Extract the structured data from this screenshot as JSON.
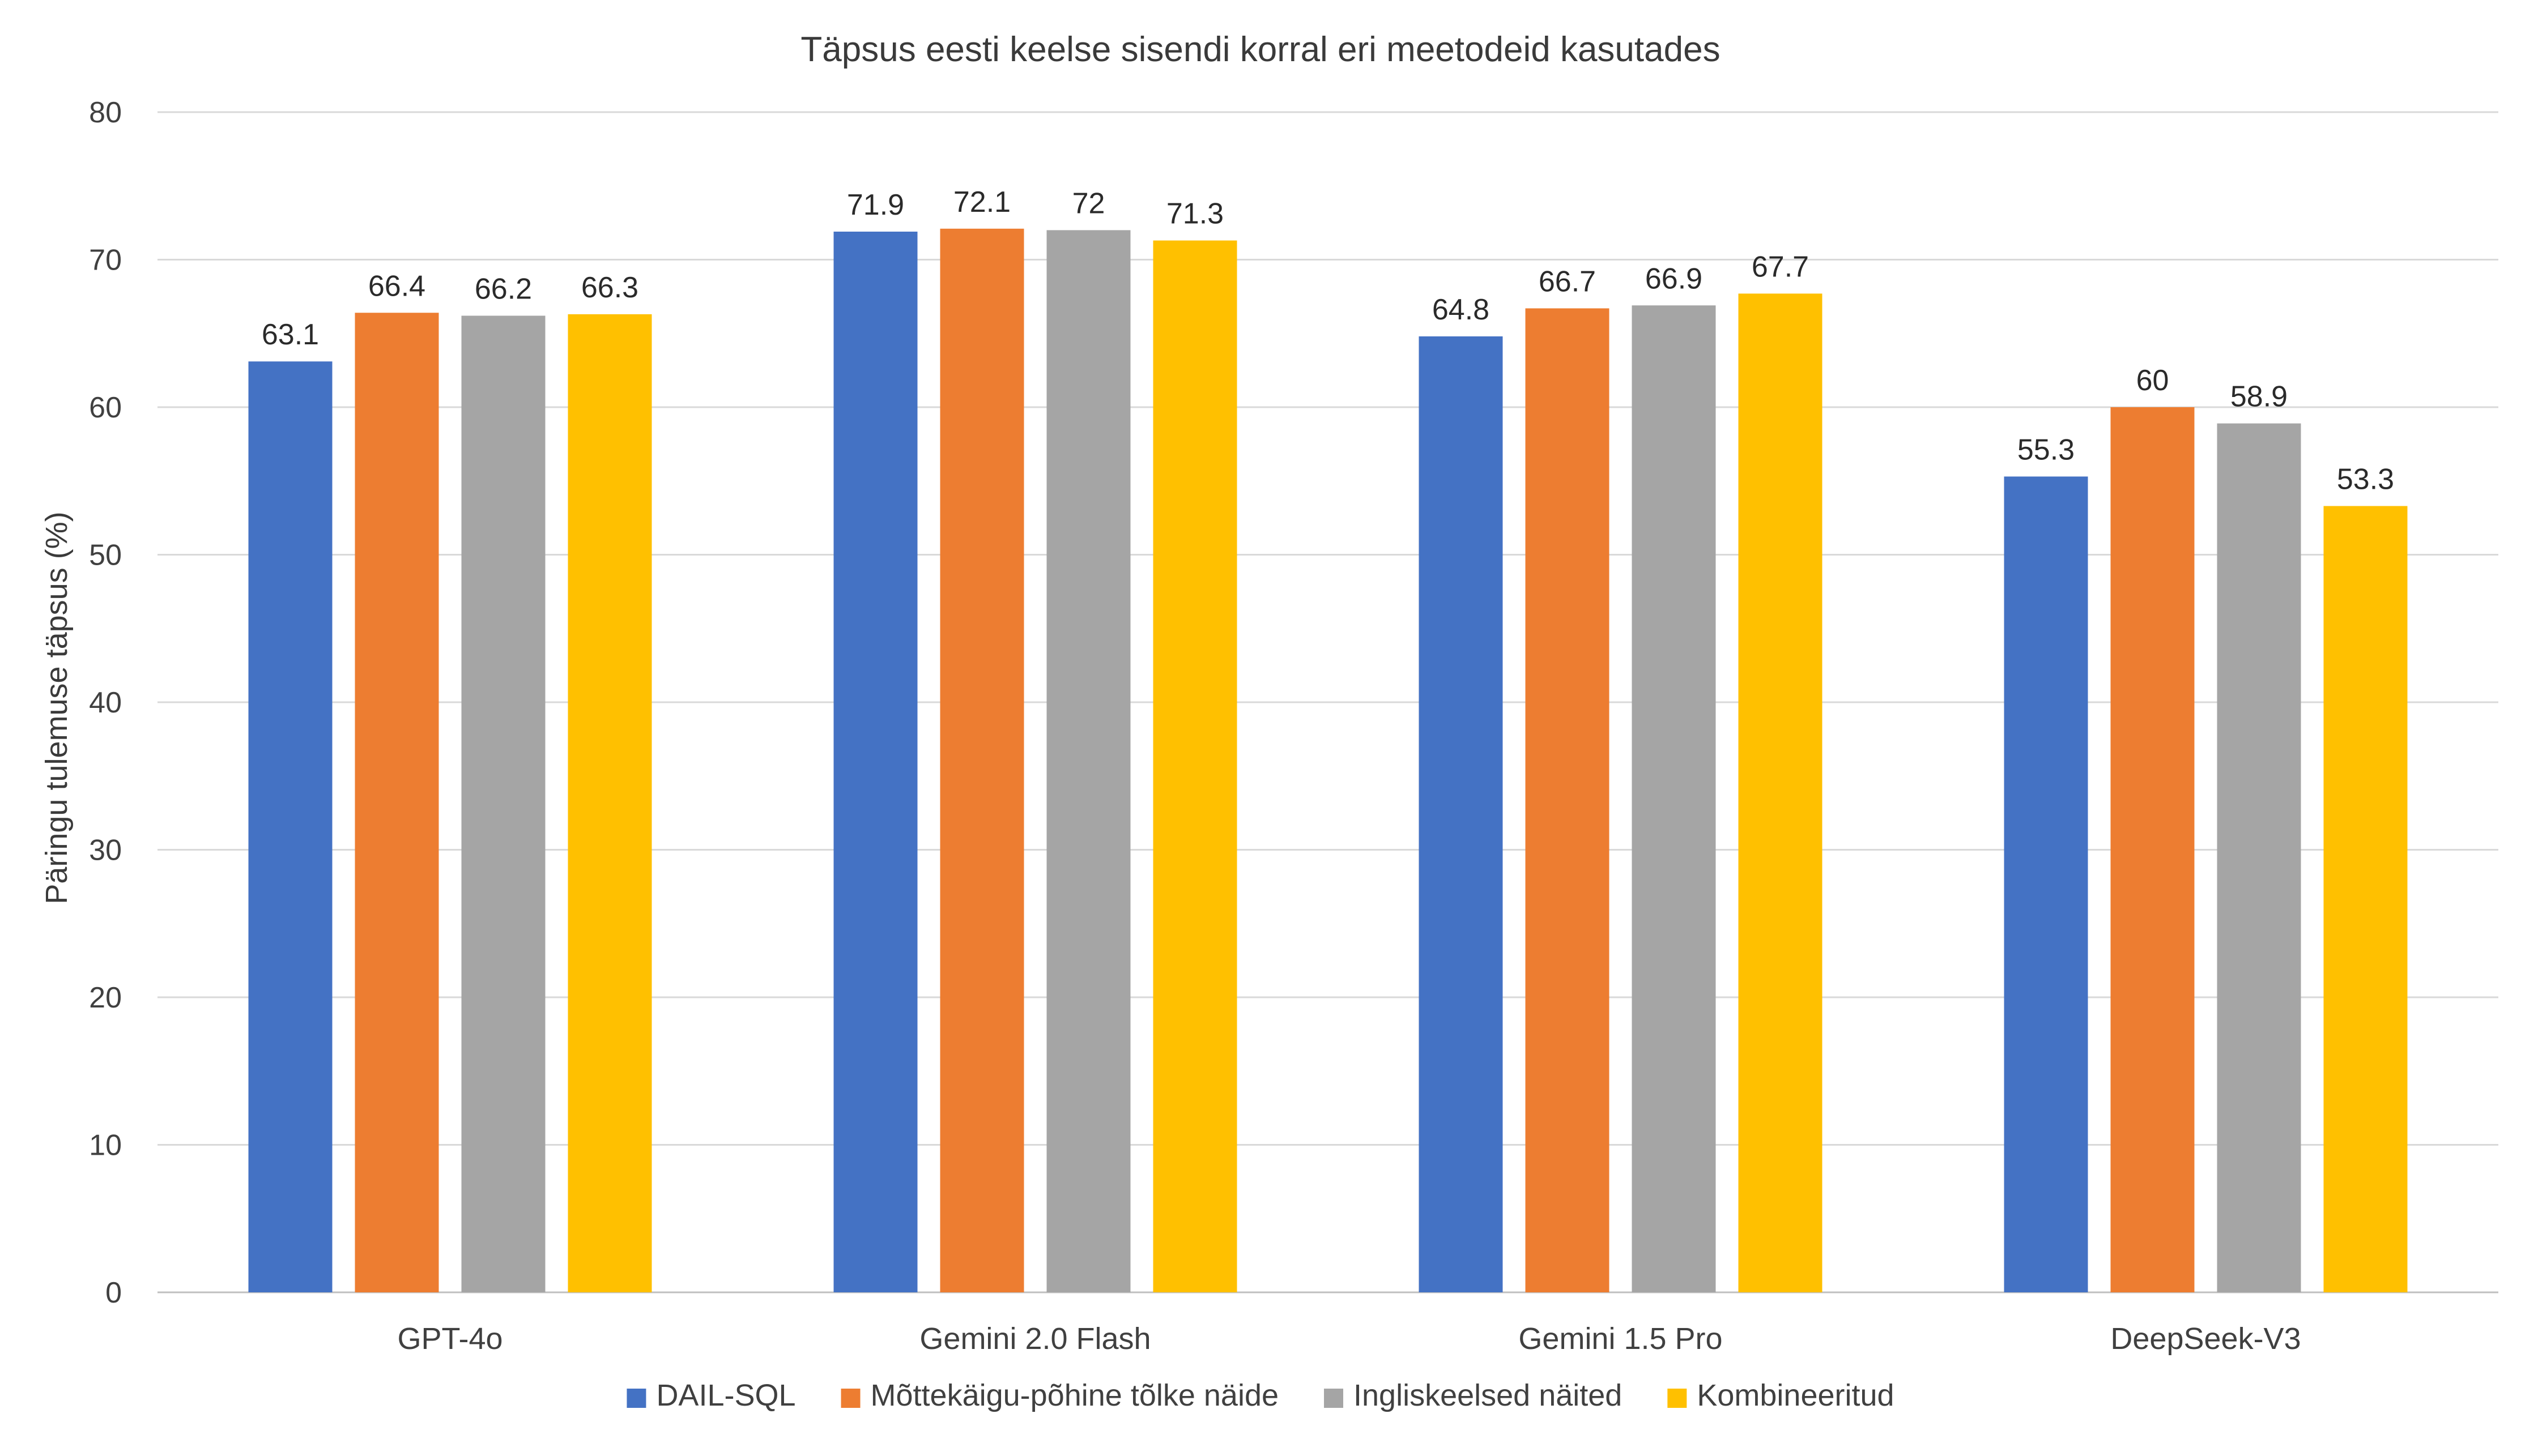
{
  "chart_data": {
    "type": "bar",
    "title": "Täpsus eesti keelse sisendi korral eri meetodeid kasutades",
    "xlabel": "",
    "ylabel": "Päringu tulemuse täpsus (%)",
    "ylim": [
      0,
      80
    ],
    "yticks": [
      0,
      10,
      20,
      30,
      40,
      50,
      60,
      70,
      80
    ],
    "grid": true,
    "legend_position": "bottom",
    "categories": [
      "GPT-4o",
      "Gemini 2.0 Flash",
      "Gemini 1.5 Pro",
      "DeepSeek-V3"
    ],
    "series": [
      {
        "name": "DAIL-SQL",
        "color": "#4472C4",
        "values": [
          63.1,
          71.9,
          64.8,
          55.3
        ]
      },
      {
        "name": "Mõttekäigu-põhine tõlke näide",
        "color": "#ED7D31",
        "values": [
          66.4,
          72.1,
          66.7,
          60
        ]
      },
      {
        "name": "Ingliskeelsed näited",
        "color": "#A5A5A5",
        "values": [
          66.2,
          72,
          66.9,
          58.9
        ]
      },
      {
        "name": "Kombineeritud",
        "color": "#FFC000",
        "values": [
          66.3,
          71.3,
          67.7,
          53.3
        ]
      }
    ]
  }
}
